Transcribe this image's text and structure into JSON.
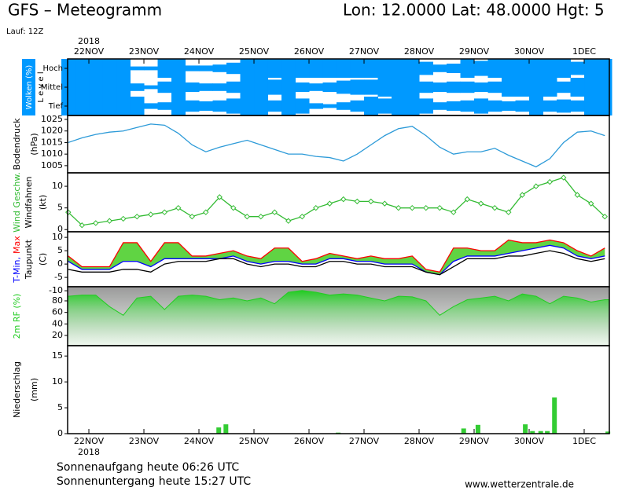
{
  "header": {
    "title": "GFS – Meteogramm",
    "location": "Lon: 12.0000  Lat: 48.0000  Hgt: 5",
    "run": "Lauf: 12Z"
  },
  "footer": {
    "sunrise": "Sonnenaufgang heute 06:26 UTC",
    "sunset": "Sonnenuntergang heute 15:27 UTC",
    "site": "www.wetterzentrale.de"
  },
  "chart_data": [
    {
      "type": "cloud",
      "ylabel": "Wolken (%)",
      "level_label": "L e v e l",
      "year_label": "2018",
      "xlim": [
        -0.386,
        9.457
      ],
      "xticks": [
        {
          "value": 0,
          "label": "22NOV"
        },
        {
          "value": 1,
          "label": "23NOV"
        },
        {
          "value": 2,
          "label": "24NOV"
        },
        {
          "value": 3,
          "label": "25NOV"
        },
        {
          "value": 4,
          "label": "26NOV"
        },
        {
          "value": 5,
          "label": "27NOV"
        },
        {
          "value": 6,
          "label": "28NOV"
        },
        {
          "value": 7,
          "label": "29NOV"
        },
        {
          "value": 8,
          "label": "30NOV"
        },
        {
          "value": 9,
          "label": "1DEC"
        }
      ],
      "x": [
        -0.375,
        -0.125,
        0.125,
        0.375,
        0.625,
        0.875,
        1.125,
        1.375,
        1.625,
        1.875,
        2.125,
        2.375,
        2.625,
        2.875,
        3.125,
        3.375,
        3.625,
        3.875,
        4.125,
        4.375,
        4.625,
        4.875,
        5.125,
        5.375,
        5.625,
        5.875,
        6.125,
        6.375,
        6.625,
        6.875,
        7.125,
        7.375,
        7.625,
        7.875,
        8.125,
        8.375,
        8.625,
        8.875,
        9.125,
        9.375
      ],
      "ylim": [
        0,
        100
      ],
      "series": [
        {
          "name": "Hoch",
          "color": "#0099ff",
          "values": [
            100,
            100,
            100,
            100,
            100,
            20,
            20,
            100,
            100,
            30,
            30,
            40,
            60,
            100,
            100,
            100,
            100,
            100,
            100,
            100,
            100,
            100,
            100,
            100,
            100,
            100,
            70,
            40,
            50,
            100,
            80,
            100,
            100,
            100,
            100,
            100,
            100,
            70,
            100,
            100
          ]
        },
        {
          "name": "Mittel",
          "color": "#0099ff",
          "values": [
            100,
            100,
            100,
            100,
            100,
            40,
            20,
            60,
            100,
            50,
            40,
            40,
            60,
            100,
            100,
            80,
            100,
            50,
            40,
            50,
            70,
            80,
            80,
            100,
            100,
            100,
            60,
            50,
            60,
            60,
            50,
            60,
            100,
            100,
            100,
            100,
            60,
            100,
            100,
            100
          ]
        },
        {
          "name": "Tief",
          "color": "#0099ff",
          "values": [
            100,
            100,
            100,
            100,
            100,
            100,
            30,
            40,
            100,
            60,
            50,
            60,
            80,
            100,
            100,
            60,
            100,
            80,
            30,
            20,
            40,
            60,
            100,
            80,
            100,
            100,
            80,
            40,
            50,
            60,
            80,
            60,
            50,
            60,
            100,
            60,
            70,
            60,
            100,
            100
          ]
        }
      ]
    },
    {
      "type": "line",
      "ylabel": "Bodendruck",
      "unit": "(hPa)",
      "xlim": [
        -0.386,
        9.457
      ],
      "x": [
        -0.375,
        -0.125,
        0.125,
        0.375,
        0.625,
        0.875,
        1.125,
        1.375,
        1.625,
        1.875,
        2.125,
        2.375,
        2.625,
        2.875,
        3.125,
        3.375,
        3.625,
        3.875,
        4.125,
        4.375,
        4.625,
        4.875,
        5.125,
        5.375,
        5.625,
        5.875,
        6.125,
        6.375,
        6.625,
        6.875,
        7.125,
        7.375,
        7.625,
        7.875,
        8.125,
        8.375,
        8.625,
        8.875,
        9.125,
        9.375
      ],
      "ylim": [
        1001.9,
        1026.7
      ],
      "yticks": [
        1005,
        1010,
        1015,
        1020,
        1025
      ],
      "series": [
        {
          "name": "Bodendruck",
          "color": "#2c9ad8",
          "values": [
            1015,
            1017,
            1018.5,
            1019.5,
            1020,
            1021.5,
            1023,
            1022.5,
            1019,
            1014,
            1011,
            1013,
            1014.5,
            1016,
            1014,
            1012,
            1010,
            1010,
            1009,
            1008.5,
            1007,
            1010,
            1014,
            1018,
            1021,
            1022,
            1018,
            1013,
            1010,
            1011,
            1011,
            1012.5,
            1009.5,
            1007,
            1004.5,
            1008,
            1015,
            1019.5,
            1020,
            1018
          ]
        }
      ]
    },
    {
      "type": "line",
      "markers": true,
      "ylabel": "Windfahnen",
      "unit": "(kt)",
      "xlim": [
        -0.386,
        9.457
      ],
      "x": [
        -0.375,
        -0.125,
        0.125,
        0.375,
        0.625,
        0.875,
        1.125,
        1.375,
        1.625,
        1.875,
        2.125,
        2.375,
        2.625,
        2.875,
        3.125,
        3.375,
        3.625,
        3.875,
        4.125,
        4.375,
        4.625,
        4.875,
        5.125,
        5.375,
        5.625,
        5.875,
        6.125,
        6.375,
        6.625,
        6.875,
        7.125,
        7.375,
        7.625,
        7.875,
        8.125,
        8.375,
        8.625,
        8.875,
        9.125,
        9.375
      ],
      "ylim": [
        -0.5,
        13.1
      ],
      "yticks": [
        0,
        5,
        10
      ],
      "series": [
        {
          "name": "Wind Geschw.",
          "color": "#33bb33",
          "values": [
            4,
            1,
            1.5,
            2,
            2.5,
            3,
            3.5,
            4,
            5,
            3,
            4,
            7.5,
            5,
            3,
            3,
            4,
            2,
            3,
            5,
            6,
            7,
            6.5,
            6.5,
            6,
            5,
            5,
            5,
            5,
            4,
            7,
            6,
            5,
            4,
            8,
            10,
            11,
            12,
            8,
            6,
            3
          ]
        }
      ]
    },
    {
      "type": "line",
      "fill_between": [
        0,
        1
      ],
      "fill_color": "#44cc22",
      "unit": "(C)",
      "xlim": [
        -0.386,
        9.457
      ],
      "x": [
        -0.375,
        -0.125,
        0.125,
        0.375,
        0.625,
        0.875,
        1.125,
        1.375,
        1.625,
        1.875,
        2.125,
        2.375,
        2.625,
        2.875,
        3.125,
        3.375,
        3.625,
        3.875,
        4.125,
        4.375,
        4.625,
        4.875,
        5.125,
        5.375,
        5.625,
        5.875,
        6.125,
        6.375,
        6.625,
        6.875,
        7.125,
        7.375,
        7.625,
        7.875,
        8.125,
        8.375,
        8.625,
        8.875,
        9.125,
        9.375
      ],
      "ylim": [
        -8.5,
        12.1
      ],
      "yticks": [
        -10,
        -5,
        0,
        5,
        10
      ],
      "series": [
        {
          "name": "T-Min,",
          "color": "#0000ff",
          "values": [
            1,
            -2,
            -2,
            -2,
            1,
            1,
            -1,
            2,
            2,
            2,
            2,
            2,
            3,
            1,
            0,
            1,
            1,
            0,
            0,
            2,
            2,
            1,
            1,
            0,
            0,
            0,
            -3,
            -4,
            1,
            3,
            3,
            3,
            4,
            5,
            6,
            7,
            6,
            3,
            2,
            3
          ]
        },
        {
          "name": "Max",
          "color": "#ff0000",
          "values": [
            3,
            -1,
            -1,
            -1,
            8,
            8,
            1,
            8,
            8,
            3,
            3,
            4,
            5,
            3,
            2,
            6,
            6,
            1,
            2,
            4,
            3,
            2,
            3,
            2,
            2,
            3,
            -2,
            -3,
            6,
            6,
            5,
            5,
            9,
            8,
            8,
            9,
            8,
            5,
            3,
            6
          ]
        },
        {
          "name": "Taupunkt",
          "color": "#000000",
          "values": [
            -2,
            -3,
            -3,
            -3,
            -2,
            -2,
            -3,
            0,
            1,
            1,
            1,
            2,
            2,
            0,
            -1,
            0,
            0,
            -1,
            -1,
            1,
            1,
            0,
            0,
            -1,
            -1,
            -1,
            -3,
            -4,
            -1,
            2,
            2,
            2,
            3,
            3,
            4,
            5,
            4,
            2,
            1,
            2
          ]
        }
      ]
    },
    {
      "type": "area",
      "xlim": [
        -0.386,
        9.457
      ],
      "x": [
        -0.375,
        -0.125,
        0.125,
        0.375,
        0.625,
        0.875,
        1.125,
        1.375,
        1.625,
        1.875,
        2.125,
        2.375,
        2.625,
        2.875,
        3.125,
        3.375,
        3.625,
        3.875,
        4.125,
        4.375,
        4.625,
        4.875,
        5.125,
        5.375,
        5.625,
        5.875,
        6.125,
        6.375,
        6.625,
        6.875,
        7.125,
        7.375,
        7.625,
        7.875,
        8.125,
        8.375,
        8.625,
        8.875,
        9.125,
        9.375
      ],
      "ylim": [
        2.3,
        104.5
      ],
      "yticks": [
        20,
        40,
        60,
        80
      ],
      "series": [
        {
          "name": "2m RF (%)",
          "color": "#22cc22",
          "values": [
            88,
            90,
            90,
            70,
            55,
            85,
            88,
            65,
            88,
            90,
            88,
            82,
            85,
            80,
            85,
            75,
            95,
            98,
            95,
            90,
            92,
            90,
            85,
            80,
            88,
            87,
            80,
            55,
            70,
            82,
            85,
            88,
            80,
            92,
            88,
            75,
            88,
            85,
            78,
            82
          ]
        }
      ]
    },
    {
      "type": "bar",
      "ylabel": "Niederschlag",
      "unit": "(mm)",
      "year_label": "2018",
      "xlim": [
        -0.386,
        9.457
      ],
      "xticks": [
        {
          "value": 0,
          "label": "22NOV"
        },
        {
          "value": 1,
          "label": "23NOV"
        },
        {
          "value": 2,
          "label": "24NOV"
        },
        {
          "value": 3,
          "label": "25NOV"
        },
        {
          "value": 4,
          "label": "26NOV"
        },
        {
          "value": 5,
          "label": "27NOV"
        },
        {
          "value": 6,
          "label": "28NOV"
        },
        {
          "value": 7,
          "label": "29NOV"
        },
        {
          "value": 8,
          "label": "30NOV"
        },
        {
          "value": 9,
          "label": "1DEC"
        }
      ],
      "x": [
        2.36,
        2.49,
        4.53,
        6.81,
        7.07,
        7.93,
        8.06,
        8.21,
        8.33,
        8.46,
        9.43
      ],
      "ylim": [
        0,
        17
      ],
      "yticks": [
        0,
        5,
        10,
        15
      ],
      "color": "#33cc33",
      "values": [
        1.2,
        1.8,
        0.2,
        1,
        1.7,
        1.8,
        0.5,
        0.5,
        0.5,
        7,
        0.4
      ]
    }
  ]
}
